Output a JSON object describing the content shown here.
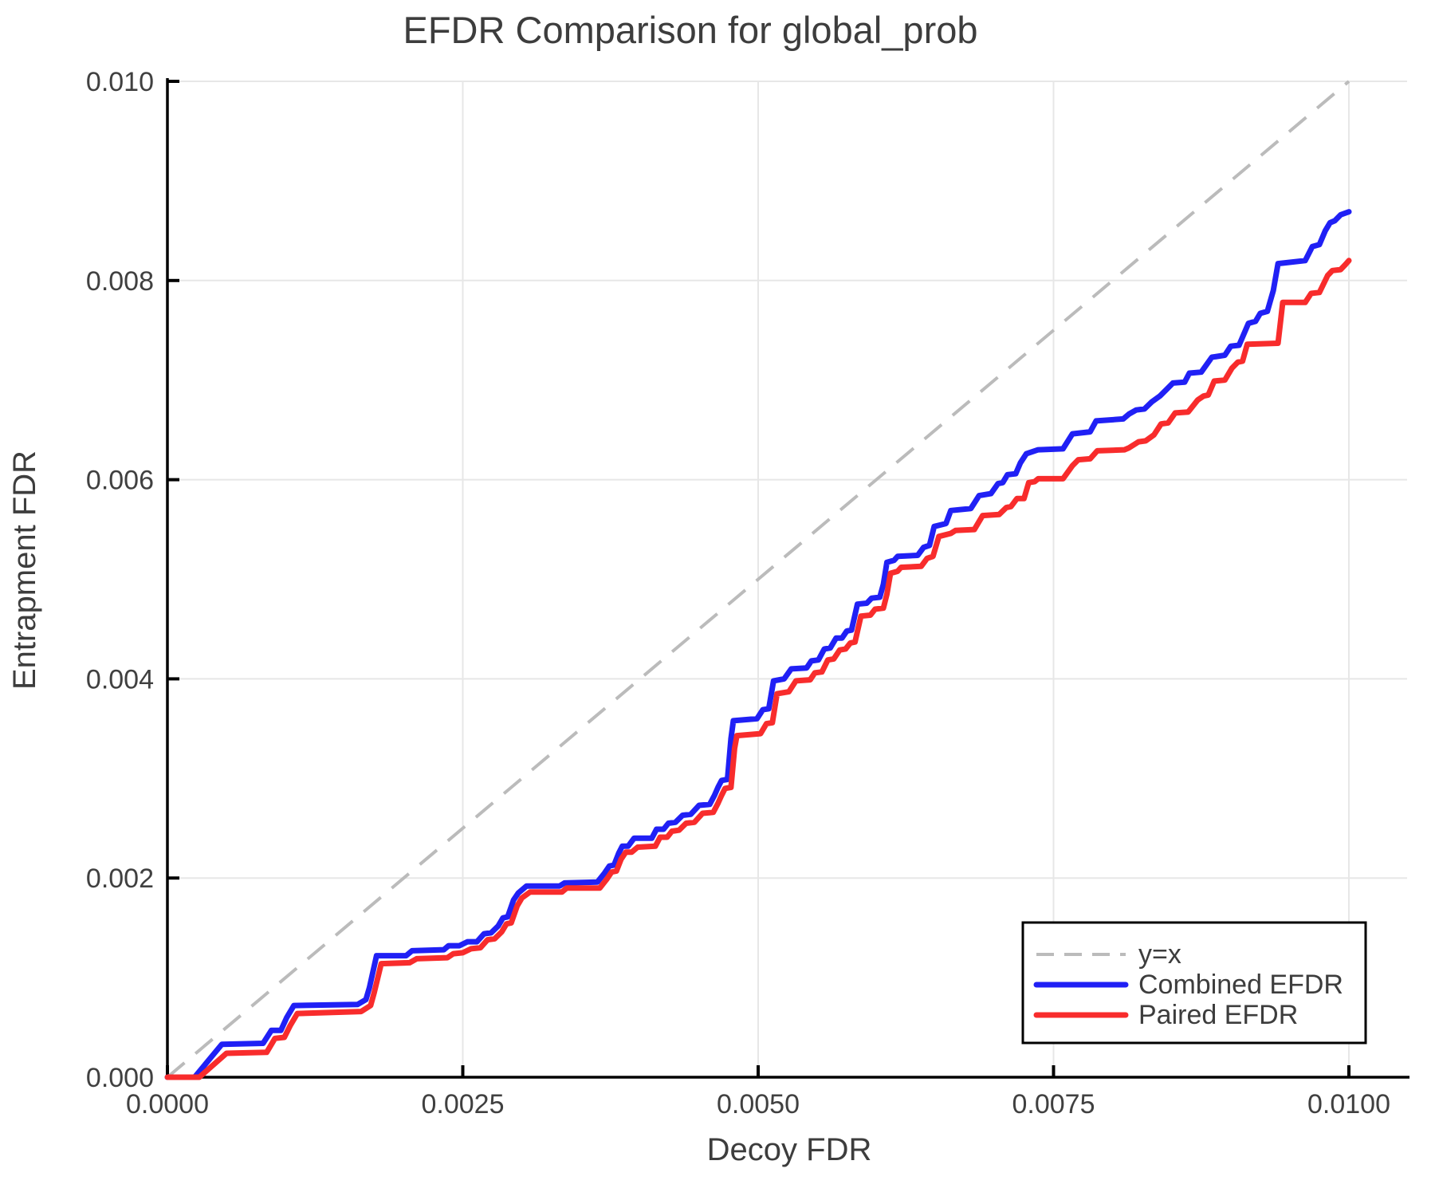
{
  "page": {
    "background": "#ffffff"
  },
  "chart_data": {
    "type": "line",
    "title": "EFDR Comparison for global_prob",
    "xlabel": "Decoy FDR",
    "ylabel": "Entrapment FDR",
    "xlim": [
      0,
      0.0105
    ],
    "ylim": [
      0,
      0.01
    ],
    "grid": true,
    "legend_position": "lower right",
    "x_tick_values": [
      0.0,
      0.0025,
      0.005,
      0.0075,
      0.01
    ],
    "x_tick_labels": [
      "0.0000",
      "0.0025",
      "0.0050",
      "0.0075",
      "0.0100"
    ],
    "y_tick_values": [
      0.0,
      0.002,
      0.004,
      0.006,
      0.008,
      0.01
    ],
    "y_tick_labels": [
      "0.000",
      "0.002",
      "0.004",
      "0.006",
      "0.008",
      "0.010"
    ],
    "colors": {
      "grid": "#e7e7e7",
      "axis": "#000000",
      "reference": "#bbbbbb",
      "combined": "#2020f5",
      "paired": "#f82c2c",
      "text": "#3d3d3d"
    },
    "series": [
      {
        "name": "y=x",
        "color": "#bbbbbb",
        "dashed": true,
        "width": 4,
        "points": [
          [
            0,
            0
          ],
          [
            0.01,
            0.01
          ]
        ]
      },
      {
        "name": "Combined EFDR",
        "color": "#2020f5",
        "dashed": false,
        "width": 7,
        "points": [
          [
            0,
            0
          ],
          [
            0.00023,
            0
          ],
          [
            0.00046,
            0.00033
          ],
          [
            0.00081,
            0.00034
          ],
          [
            0.00088,
            0.00047
          ],
          [
            0.00096,
            0.00047
          ],
          [
            0.00101,
            0.0006
          ],
          [
            0.00107,
            0.00072
          ],
          [
            0.00161,
            0.00073
          ],
          [
            0.00168,
            0.00078
          ],
          [
            0.00171,
            0.0009
          ],
          [
            0.00177,
            0.00122
          ],
          [
            0.00202,
            0.00122
          ],
          [
            0.00207,
            0.00127
          ],
          [
            0.00234,
            0.00128
          ],
          [
            0.00238,
            0.00132
          ],
          [
            0.00247,
            0.00132
          ],
          [
            0.00254,
            0.00136
          ],
          [
            0.00262,
            0.00136
          ],
          [
            0.00268,
            0.00144
          ],
          [
            0.00274,
            0.00145
          ],
          [
            0.0028,
            0.00152
          ],
          [
            0.00284,
            0.0016
          ],
          [
            0.00288,
            0.00161
          ],
          [
            0.00293,
            0.00178
          ],
          [
            0.00297,
            0.00185
          ],
          [
            0.00304,
            0.00192
          ],
          [
            0.00332,
            0.00192
          ],
          [
            0.00336,
            0.00195
          ],
          [
            0.00364,
            0.00196
          ],
          [
            0.0037,
            0.00205
          ],
          [
            0.00374,
            0.00212
          ],
          [
            0.00378,
            0.00213
          ],
          [
            0.00382,
            0.00225
          ],
          [
            0.00385,
            0.00232
          ],
          [
            0.0039,
            0.00232
          ],
          [
            0.00395,
            0.0024
          ],
          [
            0.0041,
            0.0024
          ],
          [
            0.00414,
            0.00249
          ],
          [
            0.0042,
            0.00249
          ],
          [
            0.00424,
            0.00255
          ],
          [
            0.0043,
            0.00256
          ],
          [
            0.00436,
            0.00263
          ],
          [
            0.00443,
            0.00264
          ],
          [
            0.0045,
            0.00273
          ],
          [
            0.00459,
            0.00274
          ],
          [
            0.00463,
            0.00283
          ],
          [
            0.00466,
            0.00291
          ],
          [
            0.00469,
            0.00298
          ],
          [
            0.00474,
            0.00299
          ],
          [
            0.00477,
            0.0034
          ],
          [
            0.00479,
            0.00358
          ],
          [
            0.00499,
            0.0036
          ],
          [
            0.00504,
            0.00369
          ],
          [
            0.00509,
            0.0037
          ],
          [
            0.00513,
            0.00398
          ],
          [
            0.00522,
            0.004
          ],
          [
            0.00528,
            0.0041
          ],
          [
            0.00541,
            0.00411
          ],
          [
            0.00545,
            0.00418
          ],
          [
            0.00551,
            0.00419
          ],
          [
            0.00556,
            0.0043
          ],
          [
            0.00561,
            0.00431
          ],
          [
            0.00566,
            0.00441
          ],
          [
            0.00571,
            0.00441
          ],
          [
            0.00575,
            0.00448
          ],
          [
            0.00579,
            0.00449
          ],
          [
            0.00584,
            0.00475
          ],
          [
            0.00592,
            0.00476
          ],
          [
            0.00596,
            0.00481
          ],
          [
            0.00603,
            0.00482
          ],
          [
            0.00606,
            0.00495
          ],
          [
            0.00609,
            0.00517
          ],
          [
            0.00615,
            0.00519
          ],
          [
            0.00618,
            0.00523
          ],
          [
            0.00635,
            0.00524
          ],
          [
            0.0064,
            0.00532
          ],
          [
            0.00645,
            0.00534
          ],
          [
            0.00649,
            0.00553
          ],
          [
            0.00659,
            0.00556
          ],
          [
            0.00663,
            0.00569
          ],
          [
            0.0068,
            0.00571
          ],
          [
            0.00687,
            0.00584
          ],
          [
            0.00697,
            0.00586
          ],
          [
            0.00703,
            0.00596
          ],
          [
            0.00707,
            0.00597
          ],
          [
            0.00711,
            0.00605
          ],
          [
            0.00718,
            0.00606
          ],
          [
            0.00722,
            0.00617
          ],
          [
            0.00727,
            0.00626
          ],
          [
            0.00737,
            0.0063
          ],
          [
            0.00758,
            0.00631
          ],
          [
            0.00766,
            0.00646
          ],
          [
            0.00781,
            0.00648
          ],
          [
            0.00786,
            0.00659
          ],
          [
            0.00809,
            0.00661
          ],
          [
            0.00814,
            0.00666
          ],
          [
            0.0082,
            0.0067
          ],
          [
            0.00827,
            0.00671
          ],
          [
            0.00833,
            0.00678
          ],
          [
            0.0084,
            0.00684
          ],
          [
            0.00846,
            0.00691
          ],
          [
            0.00851,
            0.00697
          ],
          [
            0.00861,
            0.00698
          ],
          [
            0.00865,
            0.00707
          ],
          [
            0.00875,
            0.00708
          ],
          [
            0.00884,
            0.00723
          ],
          [
            0.00895,
            0.00725
          ],
          [
            0.009,
            0.00734
          ],
          [
            0.00907,
            0.00735
          ],
          [
            0.00915,
            0.00757
          ],
          [
            0.00921,
            0.00759
          ],
          [
            0.00925,
            0.00767
          ],
          [
            0.00931,
            0.00769
          ],
          [
            0.00936,
            0.0079
          ],
          [
            0.0094,
            0.00817
          ],
          [
            0.00963,
            0.0082
          ],
          [
            0.00969,
            0.00834
          ],
          [
            0.00975,
            0.00836
          ],
          [
            0.0098,
            0.0085
          ],
          [
            0.00984,
            0.00858
          ],
          [
            0.00988,
            0.0086
          ],
          [
            0.00993,
            0.00866
          ],
          [
            0.01,
            0.00869
          ]
        ]
      },
      {
        "name": "Paired EFDR",
        "color": "#f82c2c",
        "dashed": false,
        "width": 7,
        "points": [
          [
            0,
            0
          ],
          [
            0.00027,
            0
          ],
          [
            0.0005,
            0.00024
          ],
          [
            0.00084,
            0.00025
          ],
          [
            0.00091,
            0.00039
          ],
          [
            0.00099,
            0.0004
          ],
          [
            0.00104,
            0.00052
          ],
          [
            0.0011,
            0.00064
          ],
          [
            0.00164,
            0.00066
          ],
          [
            0.00172,
            0.00072
          ],
          [
            0.00175,
            0.00085
          ],
          [
            0.00181,
            0.00114
          ],
          [
            0.00205,
            0.00115
          ],
          [
            0.00211,
            0.00119
          ],
          [
            0.00237,
            0.0012
          ],
          [
            0.00242,
            0.00124
          ],
          [
            0.0025,
            0.00125
          ],
          [
            0.00257,
            0.00129
          ],
          [
            0.00265,
            0.0013
          ],
          [
            0.00271,
            0.00138
          ],
          [
            0.00277,
            0.00139
          ],
          [
            0.00283,
            0.00146
          ],
          [
            0.00287,
            0.00154
          ],
          [
            0.00291,
            0.00155
          ],
          [
            0.00296,
            0.00172
          ],
          [
            0.003,
            0.0018
          ],
          [
            0.00307,
            0.00186
          ],
          [
            0.00334,
            0.00186
          ],
          [
            0.00338,
            0.0019
          ],
          [
            0.00366,
            0.0019
          ],
          [
            0.00372,
            0.00199
          ],
          [
            0.00376,
            0.00206
          ],
          [
            0.0038,
            0.00207
          ],
          [
            0.00384,
            0.00219
          ],
          [
            0.00388,
            0.00226
          ],
          [
            0.00393,
            0.00226
          ],
          [
            0.00398,
            0.00231
          ],
          [
            0.00413,
            0.00232
          ],
          [
            0.00417,
            0.00241
          ],
          [
            0.00423,
            0.00241
          ],
          [
            0.00427,
            0.00247
          ],
          [
            0.00433,
            0.00248
          ],
          [
            0.00439,
            0.00255
          ],
          [
            0.00446,
            0.00256
          ],
          [
            0.00453,
            0.00265
          ],
          [
            0.00462,
            0.00266
          ],
          [
            0.00466,
            0.00275
          ],
          [
            0.00469,
            0.00283
          ],
          [
            0.00472,
            0.0029
          ],
          [
            0.00477,
            0.00291
          ],
          [
            0.0048,
            0.0033
          ],
          [
            0.00482,
            0.00343
          ],
          [
            0.00502,
            0.00345
          ],
          [
            0.00507,
            0.00355
          ],
          [
            0.00512,
            0.00356
          ],
          [
            0.00516,
            0.00385
          ],
          [
            0.00526,
            0.00387
          ],
          [
            0.00532,
            0.00398
          ],
          [
            0.00544,
            0.00399
          ],
          [
            0.00548,
            0.00406
          ],
          [
            0.00554,
            0.00407
          ],
          [
            0.00559,
            0.00419
          ],
          [
            0.00564,
            0.0042
          ],
          [
            0.00569,
            0.00429
          ],
          [
            0.00574,
            0.0043
          ],
          [
            0.00578,
            0.00436
          ],
          [
            0.00582,
            0.00437
          ],
          [
            0.00587,
            0.00463
          ],
          [
            0.00595,
            0.00464
          ],
          [
            0.00599,
            0.0047
          ],
          [
            0.00606,
            0.00471
          ],
          [
            0.00609,
            0.00485
          ],
          [
            0.00612,
            0.00506
          ],
          [
            0.00618,
            0.00508
          ],
          [
            0.00621,
            0.00512
          ],
          [
            0.00638,
            0.00513
          ],
          [
            0.00643,
            0.00521
          ],
          [
            0.00648,
            0.00523
          ],
          [
            0.00653,
            0.00543
          ],
          [
            0.00663,
            0.00546
          ],
          [
            0.00667,
            0.00549
          ],
          [
            0.00683,
            0.0055
          ],
          [
            0.0069,
            0.00564
          ],
          [
            0.00704,
            0.00565
          ],
          [
            0.0071,
            0.00572
          ],
          [
            0.00714,
            0.00573
          ],
          [
            0.00719,
            0.00581
          ],
          [
            0.00725,
            0.00581
          ],
          [
            0.00729,
            0.00597
          ],
          [
            0.00734,
            0.00598
          ],
          [
            0.00737,
            0.00601
          ],
          [
            0.00758,
            0.00601
          ],
          [
            0.00766,
            0.00614
          ],
          [
            0.00771,
            0.0062
          ],
          [
            0.00781,
            0.00621
          ],
          [
            0.00787,
            0.00629
          ],
          [
            0.0081,
            0.0063
          ],
          [
            0.00814,
            0.00632
          ],
          [
            0.00822,
            0.00638
          ],
          [
            0.00828,
            0.00639
          ],
          [
            0.00835,
            0.00645
          ],
          [
            0.00841,
            0.00656
          ],
          [
            0.00847,
            0.00657
          ],
          [
            0.00853,
            0.00667
          ],
          [
            0.00864,
            0.00668
          ],
          [
            0.00872,
            0.0068
          ],
          [
            0.00877,
            0.00684
          ],
          [
            0.00881,
            0.00685
          ],
          [
            0.00886,
            0.00699
          ],
          [
            0.00895,
            0.007
          ],
          [
            0.00901,
            0.00712
          ],
          [
            0.00906,
            0.00718
          ],
          [
            0.0091,
            0.00719
          ],
          [
            0.00914,
            0.00736
          ],
          [
            0.0094,
            0.00737
          ],
          [
            0.00944,
            0.00778
          ],
          [
            0.00963,
            0.00778
          ],
          [
            0.00968,
            0.00787
          ],
          [
            0.00975,
            0.00788
          ],
          [
            0.00982,
            0.00805
          ],
          [
            0.00986,
            0.0081
          ],
          [
            0.00993,
            0.00811
          ],
          [
            0.00997,
            0.00816
          ],
          [
            0.01,
            0.0082
          ]
        ]
      }
    ],
    "legend": {
      "entries": [
        "y=x",
        "Combined EFDR",
        "Paired EFDR"
      ]
    }
  }
}
